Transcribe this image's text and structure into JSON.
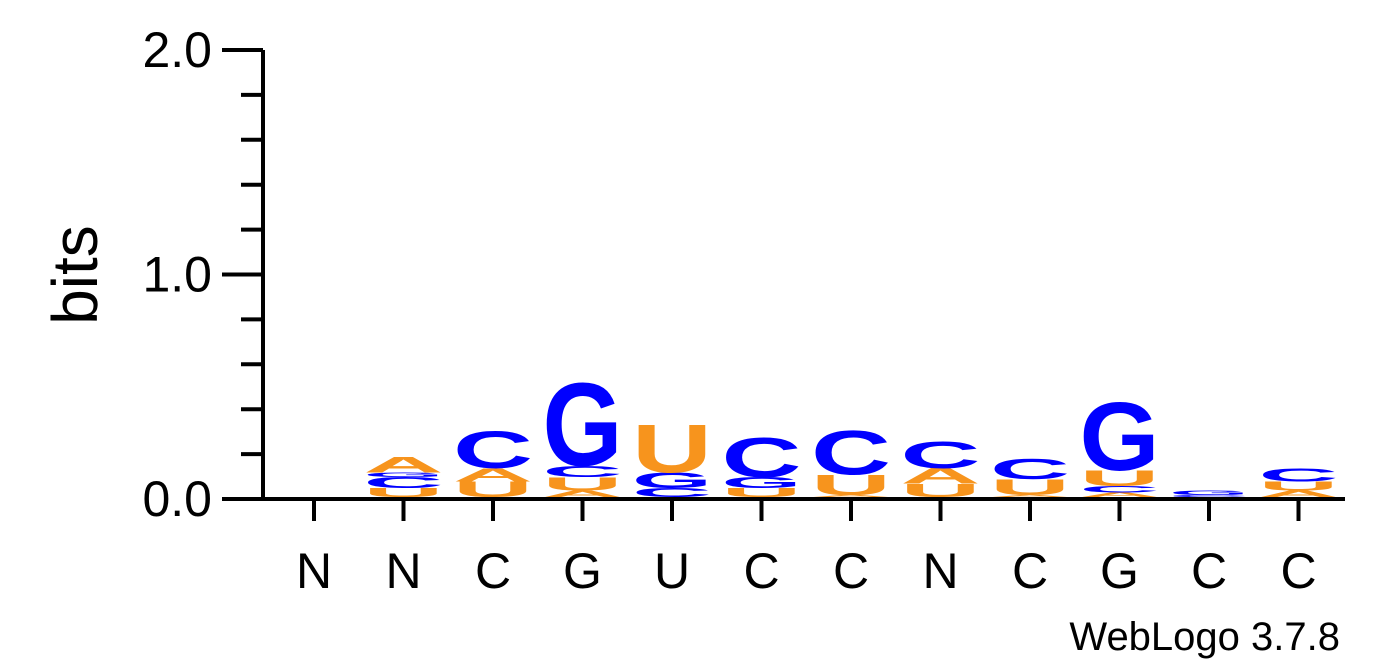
{
  "chart_data": {
    "type": "sequence-logo",
    "ylabel": "bits",
    "ylim": [
      0,
      2
    ],
    "yticks": [
      "0.0",
      "1.0",
      "2.0"
    ],
    "colors": {
      "A": "#F7941D",
      "U": "#F7941D",
      "C": "#0000FF",
      "G": "#0000FF"
    },
    "credit": "WebLogo 3.7.8",
    "positions": [
      {
        "label": "N",
        "stack": []
      },
      {
        "label": "N",
        "stack": [
          {
            "letter": "U",
            "bits": 0.04
          },
          {
            "letter": "C",
            "bits": 0.05
          },
          {
            "letter": "G",
            "bits": 0.02
          },
          {
            "letter": "A",
            "bits": 0.07
          }
        ]
      },
      {
        "label": "C",
        "stack": [
          {
            "letter": "U",
            "bits": 0.07
          },
          {
            "letter": "A",
            "bits": 0.06
          },
          {
            "letter": "C",
            "bits": 0.17
          }
        ]
      },
      {
        "label": "G",
        "stack": [
          {
            "letter": "A",
            "bits": 0.03
          },
          {
            "letter": "U",
            "bits": 0.06
          },
          {
            "letter": "C",
            "bits": 0.05
          },
          {
            "letter": "G",
            "bits": 0.38
          }
        ]
      },
      {
        "label": "U",
        "stack": [
          {
            "letter": "C",
            "bits": 0.04
          },
          {
            "letter": "G",
            "bits": 0.07
          },
          {
            "letter": "U",
            "bits": 0.22
          }
        ]
      },
      {
        "label": "C",
        "stack": [
          {
            "letter": "U",
            "bits": 0.04
          },
          {
            "letter": "G",
            "bits": 0.05
          },
          {
            "letter": "C",
            "bits": 0.18
          }
        ]
      },
      {
        "label": "C",
        "stack": [
          {
            "letter": "A",
            "bits": 0.01
          },
          {
            "letter": "U",
            "bits": 0.09
          },
          {
            "letter": "C",
            "bits": 0.2
          }
        ]
      },
      {
        "label": "N",
        "stack": [
          {
            "letter": "U",
            "bits": 0.06
          },
          {
            "letter": "A",
            "bits": 0.07
          },
          {
            "letter": "C",
            "bits": 0.12
          }
        ]
      },
      {
        "label": "C",
        "stack": [
          {
            "letter": "A",
            "bits": 0.01
          },
          {
            "letter": "U",
            "bits": 0.07
          },
          {
            "letter": "C",
            "bits": 0.09
          }
        ]
      },
      {
        "label": "G",
        "stack": [
          {
            "letter": "A",
            "bits": 0.02
          },
          {
            "letter": "C",
            "bits": 0.03
          },
          {
            "letter": "U",
            "bits": 0.07
          },
          {
            "letter": "G",
            "bits": 0.31
          }
        ]
      },
      {
        "label": "C",
        "stack": [
          {
            "letter": "C",
            "bits": 0.01
          },
          {
            "letter": "G",
            "bits": 0.02
          }
        ]
      },
      {
        "label": "C",
        "stack": [
          {
            "letter": "A",
            "bits": 0.03
          },
          {
            "letter": "U",
            "bits": 0.04
          },
          {
            "letter": "C",
            "bits": 0.06
          }
        ]
      }
    ]
  }
}
